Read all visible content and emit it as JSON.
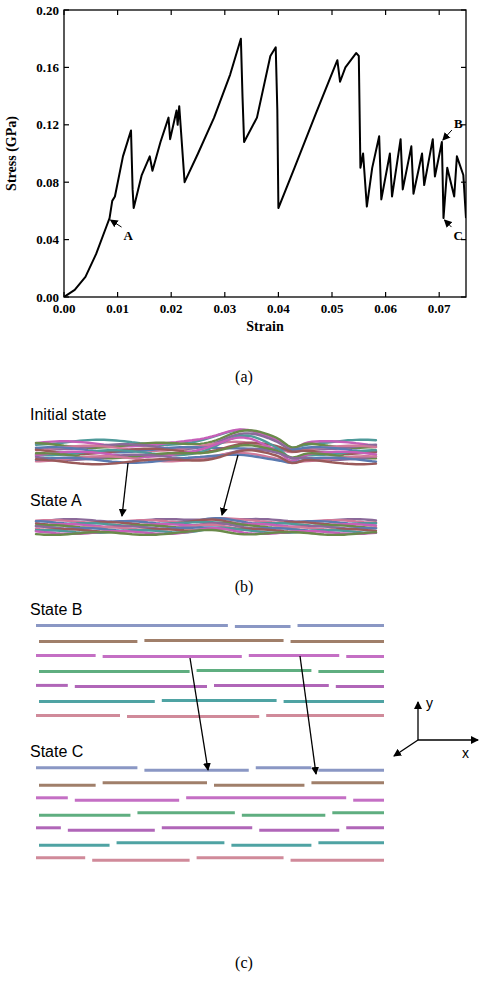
{
  "chart_data": {
    "type": "line",
    "x_label": "Strain",
    "y_label": "Stress (GPa)",
    "color": "#000000",
    "x": [
      0,
      0.002,
      0.004,
      0.006,
      0.008,
      0.0085,
      0.009,
      0.0095,
      0.011,
      0.012,
      0.0125,
      0.0128,
      0.013,
      0.0145,
      0.016,
      0.0165,
      0.018,
      0.0195,
      0.0198,
      0.021,
      0.0212,
      0.0215,
      0.0225,
      0.025,
      0.028,
      0.031,
      0.033,
      0.0333,
      0.0336,
      0.036,
      0.0385,
      0.0395,
      0.0398,
      0.04,
      0.043,
      0.047,
      0.051,
      0.0515,
      0.0525,
      0.0545,
      0.055,
      0.0553,
      0.0558,
      0.0565,
      0.0575,
      0.0588,
      0.0592,
      0.0608,
      0.0612,
      0.0628,
      0.0632,
      0.0648,
      0.0652,
      0.0668,
      0.0672,
      0.0688,
      0.0692,
      0.0705,
      0.0708,
      0.0715,
      0.0728,
      0.0733,
      0.0745,
      0.075
    ],
    "values": [
      0,
      0.005,
      0.014,
      0.03,
      0.05,
      0.055,
      0.067,
      0.07,
      0.098,
      0.11,
      0.116,
      0.075,
      0.062,
      0.085,
      0.098,
      0.088,
      0.108,
      0.125,
      0.11,
      0.13,
      0.12,
      0.133,
      0.08,
      0.1,
      0.125,
      0.155,
      0.18,
      0.14,
      0.108,
      0.125,
      0.168,
      0.174,
      0.13,
      0.062,
      0.09,
      0.128,
      0.165,
      0.15,
      0.16,
      0.17,
      0.168,
      0.09,
      0.1,
      0.063,
      0.09,
      0.112,
      0.068,
      0.1,
      0.07,
      0.11,
      0.075,
      0.105,
      0.072,
      0.1,
      0.078,
      0.11,
      0.084,
      0.108,
      0.055,
      0.09,
      0.07,
      0.098,
      0.085,
      0.055
    ],
    "xlim": [
      0,
      0.075
    ],
    "ylim": [
      0,
      0.2
    ],
    "xticks": [
      {
        "value": 0,
        "label": "0.00"
      },
      {
        "value": 0.01,
        "label": "0.01"
      },
      {
        "value": 0.02,
        "label": "0.02"
      },
      {
        "value": 0.03,
        "label": "0.03"
      },
      {
        "value": 0.04,
        "label": "0.04"
      },
      {
        "value": 0.05,
        "label": "0.05"
      },
      {
        "value": 0.06,
        "label": "0.06"
      },
      {
        "value": 0.07,
        "label": "0.07"
      }
    ],
    "yticks": [
      {
        "value": 0,
        "label": "0.00"
      },
      {
        "value": 0.04,
        "label": "0.04"
      },
      {
        "value": 0.08,
        "label": "0.08"
      },
      {
        "value": 0.12,
        "label": "0.12"
      },
      {
        "value": 0.16,
        "label": "0.16"
      },
      {
        "value": 0.2,
        "label": "0.20"
      }
    ],
    "grid": false,
    "annotations": [
      {
        "text": "A",
        "x": 0.0085,
        "y": 0.055
      },
      {
        "text": "B",
        "x": 0.0705,
        "y": 0.108
      },
      {
        "text": "C",
        "x": 0.0708,
        "y": 0.055
      }
    ]
  },
  "figure": {
    "panel_labels": [
      "(a)",
      "(b)",
      "(c)"
    ],
    "panel_b": {
      "states": [
        "Initial state",
        "State A"
      ]
    },
    "panel_c": {
      "states": [
        "State B",
        "State C"
      ],
      "axes": [
        "y",
        "x"
      ]
    }
  }
}
